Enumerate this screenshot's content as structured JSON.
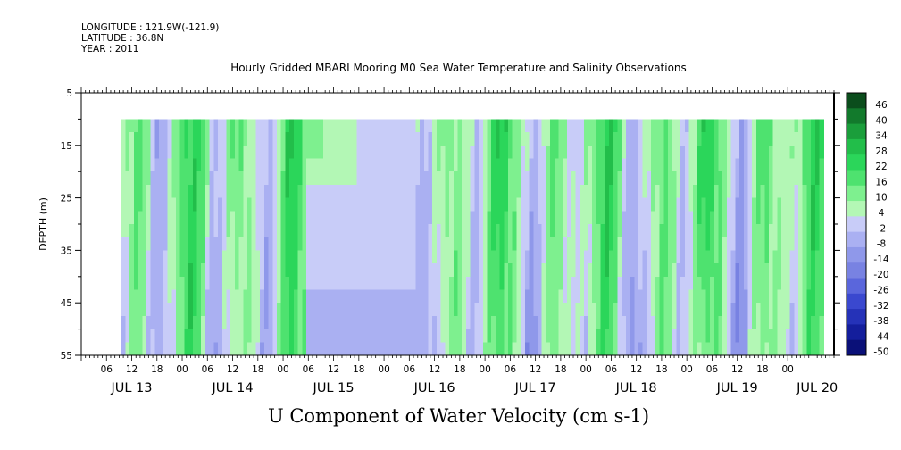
{
  "header": {
    "longitude": "LONGITUDE : 121.9W(-121.9)",
    "latitude": "LATITUDE : 36.8N",
    "year": "YEAR : 2011"
  },
  "title": "Hourly Gridded MBARI Mooring M0 Sea Water Temperature and Salinity Observations",
  "bottom_title": "U Component of Water Velocity (cm s-1)",
  "chart_data": {
    "type": "heatmap",
    "title": "Hourly Gridded MBARI Mooring M0 Sea Water Temperature and Salinity Observations",
    "xlabel": "U Component of Water Velocity (cm s-1)",
    "ylabel": "DEPTH (m)",
    "ylim": [
      55,
      5
    ],
    "y_ticks": [
      "5",
      "15",
      "25",
      "35",
      "45",
      "55"
    ],
    "x_hour_ticks": [
      "06",
      "12",
      "18",
      "00",
      "06",
      "12",
      "18",
      "00",
      "06",
      "12",
      "18",
      "00",
      "06",
      "12",
      "18",
      "00",
      "06",
      "12",
      "18",
      "00",
      "06",
      "12",
      "18",
      "00",
      "06",
      "12",
      "18",
      "00"
    ],
    "x_day_labels": [
      "JUL 13",
      "JUL 14",
      "JUL 15",
      "JUL 16",
      "JUL 17",
      "JUL 18",
      "JUL 19",
      "JUL 20"
    ],
    "colorbar": {
      "levels": [
        "46",
        "40",
        "34",
        "28",
        "22",
        "16",
        "10",
        "4",
        "-2",
        "-8",
        "-14",
        "-20",
        "-26",
        "-32",
        "-38",
        "-44",
        "-50"
      ],
      "colors_high_to_low": [
        "#0b4d1c",
        "#127a2c",
        "#1a9e3b",
        "#22be4a",
        "#2bd65a",
        "#4ee26f",
        "#7ef08f",
        "#b3f7b5",
        "#c8ccf8",
        "#aab0f2",
        "#8f98ea",
        "#7882e2",
        "#5a66dc",
        "#3a48cf",
        "#2532b8",
        "#141e9c",
        "#0a1078"
      ]
    },
    "data_depth_range": [
      10,
      55
    ],
    "data_time_range_hours": [
      9.5,
      176
    ]
  }
}
